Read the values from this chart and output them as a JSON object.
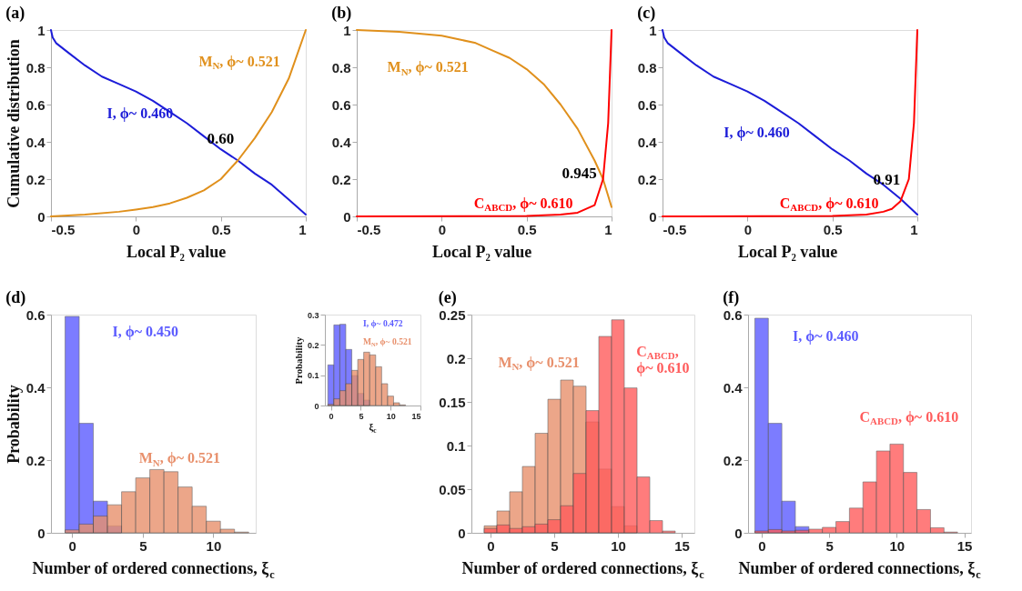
{
  "chart_data": [
    {
      "type": "line",
      "title": "(a)",
      "xlabel": "Local P₂ value",
      "ylabel": "Cumulative distribution",
      "xlim": [
        -0.5,
        1
      ],
      "ylim": [
        0,
        1
      ],
      "xticks": [
        -0.5,
        0,
        0.5,
        1
      ],
      "yticks": [
        0,
        0.2,
        0.4,
        0.6,
        0.8,
        1
      ],
      "series": [
        {
          "name": "I, ϕ~ 0.460",
          "color": "#1c1cd8",
          "x": [
            -0.5,
            -0.49,
            -0.47,
            -0.4,
            -0.3,
            -0.2,
            -0.1,
            0,
            0.1,
            0.2,
            0.3,
            0.4,
            0.5,
            0.6,
            0.7,
            0.8,
            0.9,
            1
          ],
          "values": [
            1,
            0.96,
            0.93,
            0.88,
            0.81,
            0.75,
            0.71,
            0.67,
            0.62,
            0.56,
            0.5,
            0.43,
            0.36,
            0.3,
            0.23,
            0.17,
            0.09,
            0.01
          ]
        },
        {
          "name": "M$_{N}$, ϕ~ 0.521",
          "color": "#e0901c",
          "x": [
            -0.5,
            -0.3,
            -0.1,
            0,
            0.1,
            0.2,
            0.3,
            0.4,
            0.5,
            0.6,
            0.7,
            0.8,
            0.9,
            1
          ],
          "values": [
            0,
            0.01,
            0.025,
            0.037,
            0.05,
            0.07,
            0.1,
            0.14,
            0.2,
            0.3,
            0.42,
            0.56,
            0.74,
            1
          ]
        }
      ],
      "annotations": [
        {
          "text": "0.60",
          "x": 0.6,
          "y": 0.3
        }
      ]
    },
    {
      "type": "line",
      "title": "(b)",
      "xlabel": "Local P₂ value",
      "xlim": [
        -0.5,
        1
      ],
      "ylim": [
        0,
        1
      ],
      "xticks": [
        -0.5,
        0,
        0.5,
        1
      ],
      "yticks": [
        0,
        0.2,
        0.4,
        0.6,
        0.8,
        1
      ],
      "series": [
        {
          "name": "M$_{N}$, ϕ~ 0.521",
          "color": "#e0901c",
          "x": [
            -0.5,
            -0.25,
            0,
            0.1,
            0.2,
            0.3,
            0.4,
            0.5,
            0.6,
            0.7,
            0.8,
            0.9,
            0.95,
            1
          ],
          "values": [
            1,
            0.99,
            0.97,
            0.95,
            0.93,
            0.89,
            0.85,
            0.79,
            0.71,
            0.6,
            0.47,
            0.3,
            0.2,
            0.05
          ]
        },
        {
          "name": "C$_{ABCD}$, ϕ~ 0.610",
          "color": "#ff0000",
          "x": [
            -0.5,
            0.5,
            0.7,
            0.8,
            0.9,
            0.95,
            0.98,
            1
          ],
          "values": [
            0,
            0.002,
            0.01,
            0.02,
            0.06,
            0.2,
            0.5,
            1
          ]
        }
      ],
      "annotations": [
        {
          "text": "0.945",
          "x": 0.945,
          "y": 0.22
        }
      ]
    },
    {
      "type": "line",
      "title": "(c)",
      "xlabel": "Local P₂ value",
      "xlim": [
        -0.5,
        1
      ],
      "ylim": [
        0,
        1
      ],
      "xticks": [
        -0.5,
        0,
        0.5,
        1
      ],
      "yticks": [
        0,
        0.2,
        0.4,
        0.6,
        0.8,
        1
      ],
      "series": [
        {
          "name": "I, ϕ~ 0.460",
          "color": "#1c1cd8",
          "x": [
            -0.5,
            -0.49,
            -0.47,
            -0.4,
            -0.3,
            -0.2,
            -0.1,
            0,
            0.1,
            0.2,
            0.3,
            0.4,
            0.5,
            0.6,
            0.7,
            0.8,
            0.9,
            1
          ],
          "values": [
            1,
            0.96,
            0.93,
            0.88,
            0.81,
            0.75,
            0.71,
            0.67,
            0.62,
            0.56,
            0.5,
            0.43,
            0.36,
            0.3,
            0.23,
            0.17,
            0.095,
            0.01
          ]
        },
        {
          "name": "C$_{ABCD}$, ϕ~ 0.610",
          "color": "#ff0000",
          "x": [
            -0.5,
            0.5,
            0.7,
            0.8,
            0.85,
            0.9,
            0.95,
            0.98,
            1
          ],
          "values": [
            0,
            0.003,
            0.01,
            0.025,
            0.04,
            0.08,
            0.2,
            0.5,
            1
          ]
        }
      ],
      "annotations": [
        {
          "text": "0.91",
          "x": 0.91,
          "y": 0.09
        }
      ]
    },
    {
      "type": "histogram",
      "title": "(d)",
      "xlabel": "Number of ordered connections, ξ$_{c}$",
      "ylabel": "Probability",
      "xlim": [
        -1.5,
        13
      ],
      "ylim": [
        0,
        0.6
      ],
      "xticks": [
        0,
        5,
        10
      ],
      "yticks": [
        0,
        0.2,
        0.4,
        0.6
      ],
      "bins": [
        -0.5,
        0.5,
        1.5,
        2.5,
        3.5,
        4.5,
        5.5,
        6.5,
        7.5,
        8.5,
        9.5,
        10.5,
        11.5,
        12.5
      ],
      "series": [
        {
          "name": "I, ϕ~ 0.450",
          "color": "#5c5cff",
          "values": [
            0.595,
            0.301,
            0.087,
            0.019,
            null,
            null,
            null,
            null,
            null,
            null,
            null,
            null,
            null
          ]
        },
        {
          "name": "M$_{N}$, ϕ~ 0.521",
          "color": "#e8906c",
          "values": [
            0.008,
            0.024,
            0.046,
            0.077,
            0.113,
            0.151,
            0.174,
            0.168,
            0.126,
            0.073,
            0.032,
            0.01,
            0.002
          ]
        }
      ]
    },
    {
      "type": "histogram",
      "xlabel": "ξ$_{c}$",
      "ylabel": "Probability",
      "xlim": [
        -1,
        15
      ],
      "ylim": [
        0,
        0.3
      ],
      "xticks": [
        0,
        5,
        10,
        15
      ],
      "yticks": [
        0,
        0.1,
        0.2,
        0.3
      ],
      "bins": [
        -0.5,
        0.5,
        1.5,
        2.5,
        3.5,
        4.5,
        5.5,
        6.5,
        7.5,
        8.5,
        9.5,
        10.5,
        11.5,
        12.5
      ],
      "series": [
        {
          "name": "I, ϕ~ 0.472",
          "color": "#5c5cff",
          "values": [
            0.134,
            0.266,
            0.268,
            0.185,
            0.099,
            0.04,
            0.018,
            null,
            null,
            null,
            null,
            null,
            null
          ]
        },
        {
          "name": "M$_{N}$, ϕ~ 0.521",
          "color": "#e8906c",
          "values": [
            0.004,
            0.022,
            0.049,
            0.072,
            0.116,
            0.152,
            0.176,
            0.167,
            0.128,
            0.072,
            0.031,
            0.009,
            0.002
          ]
        }
      ]
    },
    {
      "type": "histogram",
      "title": "(e)",
      "xlabel": "Number of ordered connections, ξ$_{c}$",
      "xlim": [
        -1.5,
        16
      ],
      "ylim": [
        0,
        0.25
      ],
      "xticks": [
        0,
        5,
        10,
        15
      ],
      "yticks": [
        0,
        0.05,
        0.1,
        0.15,
        0.2,
        0.25
      ],
      "bins": [
        -0.5,
        0.5,
        1.5,
        2.5,
        3.5,
        4.5,
        5.5,
        6.5,
        7.5,
        8.5,
        9.5,
        10.5,
        11.5,
        12.5,
        13.5,
        14.5
      ],
      "series": [
        {
          "name": "M$_{N}$, ϕ~ 0.521",
          "color": "#e8906c",
          "values": [
            0.008,
            0.025,
            0.047,
            0.076,
            0.114,
            0.153,
            0.175,
            0.168,
            0.127,
            0.073,
            0.03,
            0.008,
            null,
            null,
            null
          ]
        },
        {
          "name": "C$_{ABCD}$,\nϕ~ 0.610",
          "color": "#ff5c5c",
          "values": [
            0.005,
            0.009,
            0.005,
            0.007,
            0.01,
            0.015,
            0.031,
            0.068,
            0.14,
            0.225,
            0.244,
            0.166,
            0.064,
            0.014,
            0.002
          ]
        }
      ]
    },
    {
      "type": "histogram",
      "title": "(f)",
      "xlabel": "Number of ordered connections, ξ$_{c}$",
      "xlim": [
        -1,
        15.5
      ],
      "ylim": [
        0,
        0.6
      ],
      "xticks": [
        0,
        5,
        10,
        15
      ],
      "yticks": [
        0,
        0.2,
        0.4,
        0.6
      ],
      "bins": [
        -0.5,
        0.5,
        1.5,
        2.5,
        3.5,
        4.5,
        5.5,
        6.5,
        7.5,
        8.5,
        9.5,
        10.5,
        11.5,
        12.5,
        13.5,
        14.5
      ],
      "series": [
        {
          "name": "I, ϕ~ 0.460",
          "color": "#5c5cff",
          "values": [
            0.59,
            0.301,
            0.087,
            0.017,
            null,
            null,
            null,
            null,
            null,
            null,
            null,
            null,
            null,
            null,
            null
          ]
        },
        {
          "name": "C$_{ABCD}$, ϕ~ 0.610",
          "color": "#ff5c5c",
          "values": [
            0.005,
            0.009,
            0.005,
            0.007,
            0.01,
            0.015,
            0.031,
            0.068,
            0.14,
            0.225,
            0.244,
            0.166,
            0.064,
            0.014,
            0.002
          ]
        }
      ]
    }
  ]
}
